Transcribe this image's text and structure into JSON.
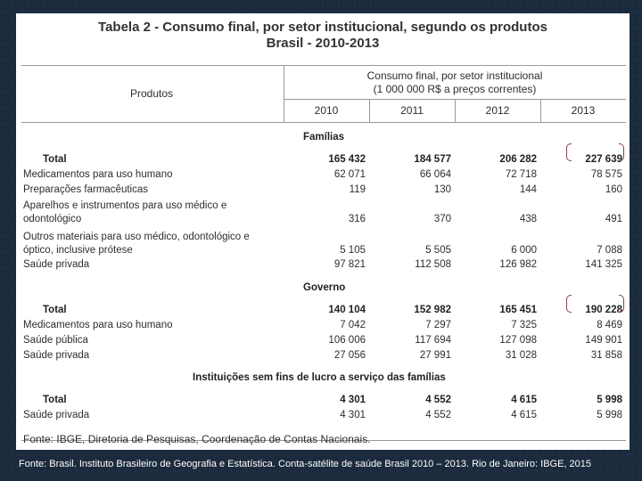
{
  "table": {
    "title_line1": "Tabela 2 - Consumo final, por setor institucional, segundo os produtos",
    "title_line2": "Brasil - 2010-2013",
    "col_header_products": "Produtos",
    "col_header_main_line1": "Consumo final, por setor institucional",
    "col_header_main_line2": "(1 000 000 R$ a preços correntes)",
    "years": [
      "2010",
      "2011",
      "2012",
      "2013"
    ],
    "sections": [
      {
        "name": "Famílias",
        "rows": [
          {
            "label": "Total",
            "values": [
              "165 432",
              "184 577",
              "206 282",
              "227 639"
            ],
            "bold": true
          },
          {
            "label": "Medicamentos para uso humano",
            "values": [
              "62 071",
              "66 064",
              "72 718",
              "78 575"
            ]
          },
          {
            "label": "Preparações farmacêuticas",
            "values": [
              "119",
              "130",
              "144",
              "160"
            ]
          },
          {
            "label": "Aparelhos e instrumentos para uso médico e",
            "label2": "odontológico",
            "values": [
              "316",
              "370",
              "438",
              "491"
            ]
          },
          {
            "label": "Outros materiais para uso médico, odontológico e",
            "label2": "óptico, inclusive prótese",
            "values": [
              "5 105",
              "5 505",
              "6 000",
              "7 088"
            ]
          },
          {
            "label": "Saúde privada",
            "values": [
              "97 821",
              "112 508",
              "126 982",
              "141 325"
            ]
          }
        ]
      },
      {
        "name": "Governo",
        "rows": [
          {
            "label": "Total",
            "values": [
              "140 104",
              "152 982",
              "165 451",
              "190 228"
            ],
            "bold": true
          },
          {
            "label": "Medicamentos para uso humano",
            "values": [
              "7 042",
              "7 297",
              "7 325",
              "8 469"
            ]
          },
          {
            "label": "Saúde pública",
            "values": [
              "106 006",
              "117 694",
              "127 098",
              "149 901"
            ]
          },
          {
            "label": "Saúde privada",
            "values": [
              "27 056",
              "27 991",
              "31 028",
              "31 858"
            ]
          }
        ]
      },
      {
        "name": "Instituições sem fins de lucro a serviço das famílias",
        "rows": [
          {
            "label": "Total",
            "values": [
              "4 301",
              "4 552",
              "4 615",
              "5 998"
            ],
            "bold": true
          },
          {
            "label": "Saúde privada",
            "values": [
              "4 301",
              "4 552",
              "4 615",
              "5 998"
            ]
          }
        ]
      }
    ],
    "source": "Fonte: IBGE, Diretoria de Pesquisas, Coordenação de Contas Nacionais."
  },
  "caption": "Fonte: Brasil. Instituto Brasileiro de Geografia e Estatística. Conta-satélite de saúde Brasil 2010 – 2013. Rio de Janeiro: IBGE, 2015",
  "colors": {
    "background": "#1b2a3c",
    "bracket": "#8b3a62",
    "rule": "#999999"
  }
}
